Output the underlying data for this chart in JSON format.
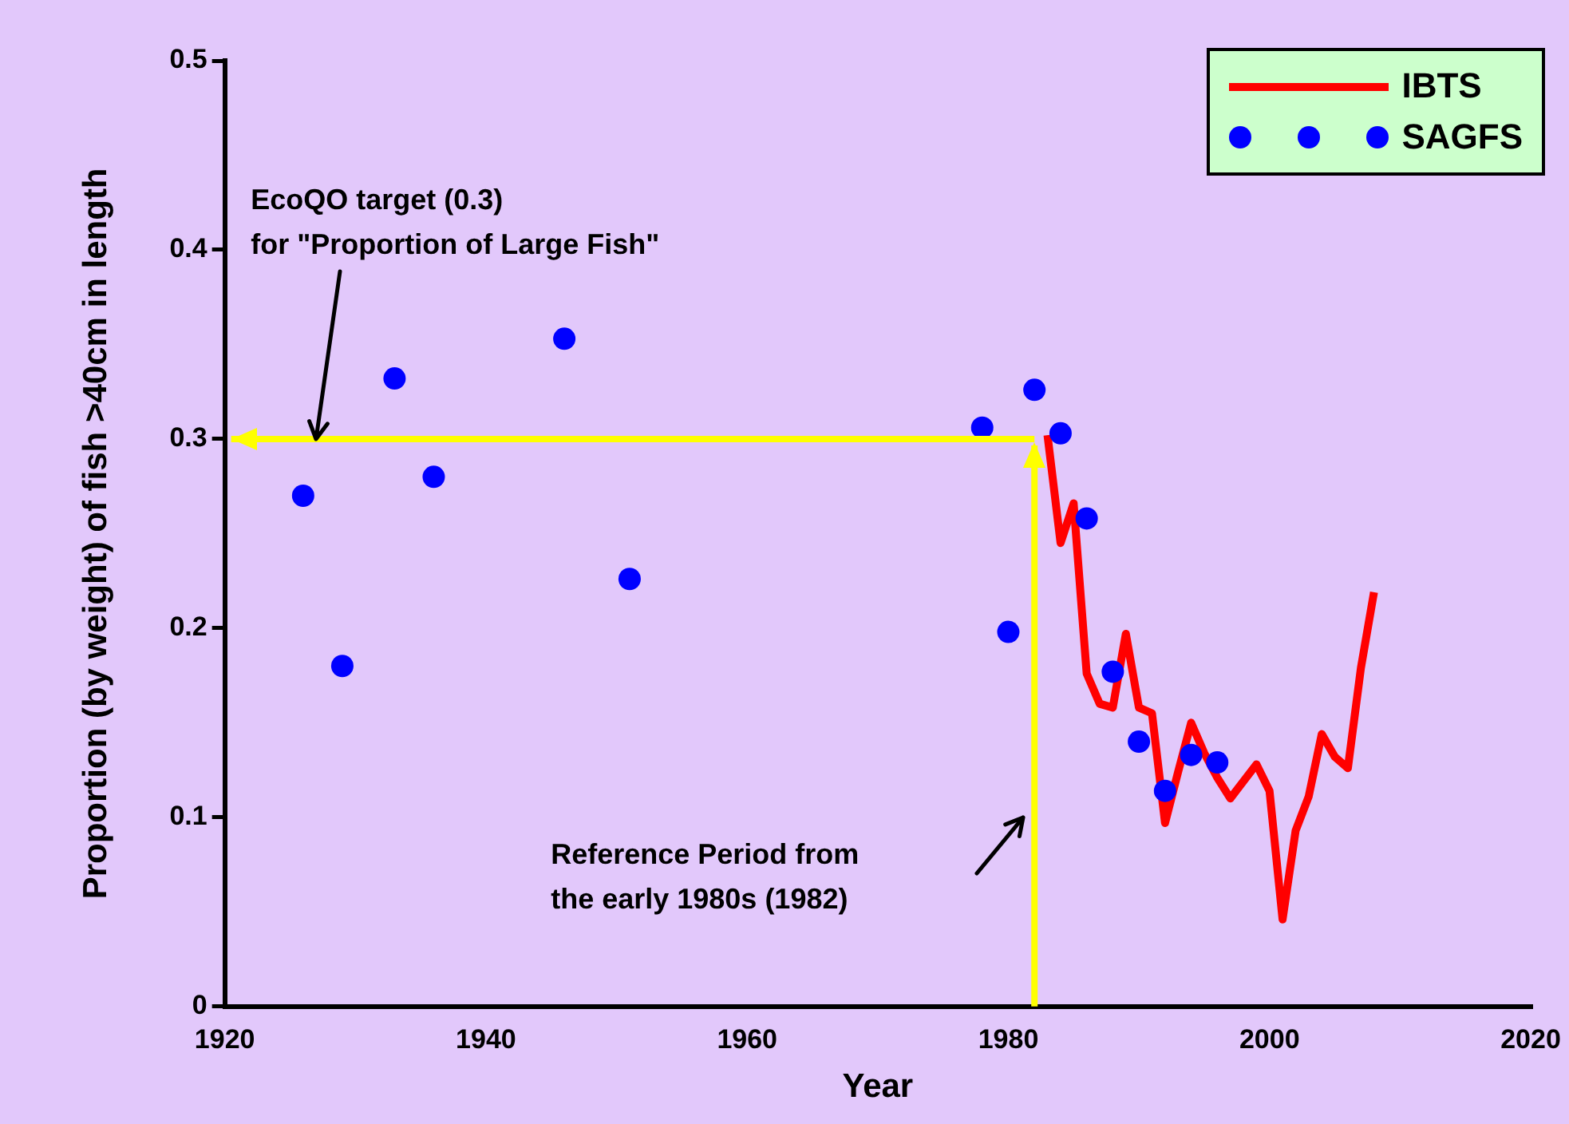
{
  "chart_data": {
    "type": "line",
    "xlabel": "Year",
    "ylabel": "Proportion (by weight) of fish >40cm in length",
    "xlim": [
      1920,
      2020
    ],
    "xticks": [
      1920,
      1940,
      1960,
      1980,
      2000,
      2020
    ],
    "ylim": [
      0,
      0.5
    ],
    "yticks": [
      0,
      0.1,
      0.2,
      0.3,
      0.4,
      0.5
    ],
    "legend": "top right",
    "series": [
      {
        "name": "IBTS",
        "type": "line",
        "color": "#ff0000",
        "marker": "none",
        "x": [
          1983,
          1984,
          1985,
          1986,
          1987,
          1988,
          1989,
          1990,
          1991,
          1992,
          1993,
          1994,
          1995,
          1996,
          1997,
          1998,
          1999,
          2000,
          2001,
          2002,
          2003,
          2004,
          2005,
          2006,
          2007,
          2008
        ],
        "values": [
          0.302,
          0.245,
          0.266,
          0.176,
          0.16,
          0.158,
          0.197,
          0.158,
          0.155,
          0.097,
          0.124,
          0.15,
          0.134,
          0.121,
          0.11,
          0.119,
          0.128,
          0.114,
          0.046,
          0.093,
          0.111,
          0.144,
          0.132,
          0.126,
          0.179,
          0.219
        ]
      },
      {
        "name": "SAGFS",
        "type": "scatter",
        "color": "#0000ff",
        "marker": "circle",
        "x": [
          1926,
          1929,
          1933,
          1936,
          1946,
          1951,
          1978,
          1980,
          1982,
          1984,
          1986,
          1988,
          1990,
          1992,
          1994,
          1996
        ],
        "values": [
          0.27,
          0.18,
          0.332,
          0.28,
          0.353,
          0.226,
          0.306,
          0.198,
          0.326,
          0.303,
          0.258,
          0.177,
          0.14,
          0.114,
          0.133,
          0.129
        ]
      }
    ],
    "ref_lines": [
      {
        "axis": "y",
        "value": 0.3,
        "color": "#ffff00"
      },
      {
        "axis": "x",
        "value": 1982,
        "color": "#ffff00"
      }
    ],
    "annotations": [
      {
        "text": "EcoQO target (0.3)\nfor \"Proportion of Large Fish\"",
        "x": 1927,
        "y": 0.3
      },
      "Reference Period from\nthe early 1980s (1982)"
    ]
  }
}
